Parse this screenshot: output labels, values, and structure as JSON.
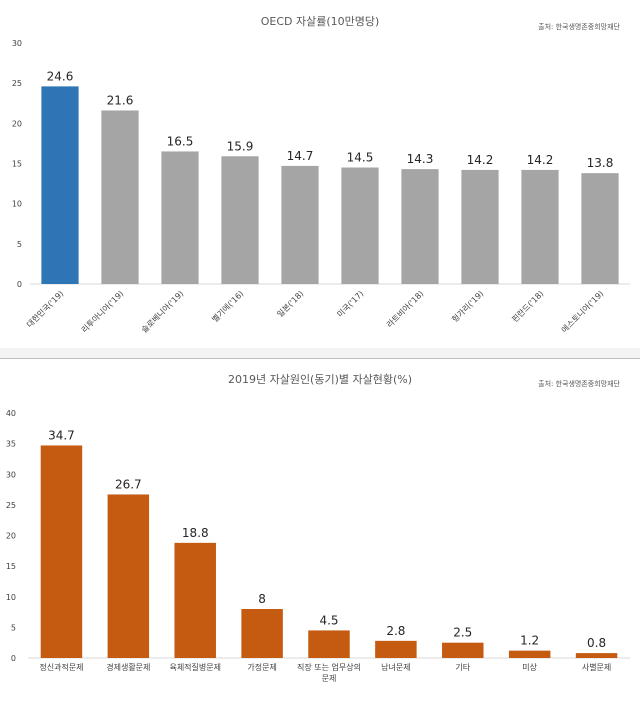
{
  "chart_data": [
    {
      "type": "bar",
      "title": "OECD 자살률(10만명당)",
      "source": "출처: 한국생명존중희망재단",
      "categories": [
        "대한민국('19)",
        "리투아니아('19)",
        "슬로베니아('19)",
        "벨기에('16)",
        "일본('18)",
        "미국('17)",
        "라트비아('18)",
        "헝가리('19)",
        "핀란드('18)",
        "에스토니아('19)"
      ],
      "values": [
        24.6,
        21.6,
        16.5,
        15.9,
        14.7,
        14.5,
        14.3,
        14.2,
        14.2,
        13.8
      ],
      "value_labels": [
        "24.6",
        "21.6",
        "16.5",
        "15.9",
        "14.7",
        "14.5",
        "14.3",
        "14.2",
        "14.2",
        "13.8"
      ],
      "ylim": [
        0,
        30
      ],
      "yticks": [
        0,
        5,
        10,
        15,
        20,
        25,
        30
      ],
      "bar_colors": [
        "#2e75b6",
        "#a5a5a5",
        "#a5a5a5",
        "#a5a5a5",
        "#a5a5a5",
        "#a5a5a5",
        "#a5a5a5",
        "#a5a5a5",
        "#a5a5a5",
        "#a5a5a5"
      ],
      "grid": false,
      "legend": "none",
      "xlabel": "",
      "ylabel": ""
    },
    {
      "type": "bar",
      "title": "2019년 자살원인(동기)별 자살현황(%)",
      "source": "출처: 한국생명존중희망재단",
      "categories": [
        [
          "정신과적문제"
        ],
        [
          "경제생활문제"
        ],
        [
          "육체적질병문제"
        ],
        [
          "가정문제"
        ],
        [
          "직장 또는 업무상의",
          "문제"
        ],
        [
          "남녀문제"
        ],
        [
          "기타"
        ],
        [
          "미상"
        ],
        [
          "사별문제"
        ]
      ],
      "values": [
        34.7,
        26.7,
        18.8,
        8,
        4.5,
        2.8,
        2.5,
        1.2,
        0.8
      ],
      "value_labels": [
        "34.7",
        "26.7",
        "18.8",
        "8",
        "4.5",
        "2.8",
        "2.5",
        "1.2",
        "0.8"
      ],
      "ylim": [
        0,
        40
      ],
      "yticks": [
        0,
        5,
        10,
        15,
        20,
        25,
        30,
        35,
        40
      ],
      "bar_colors": [
        "#c55a11"
      ],
      "grid": false,
      "legend": "none",
      "xlabel": "",
      "ylabel": ""
    }
  ]
}
